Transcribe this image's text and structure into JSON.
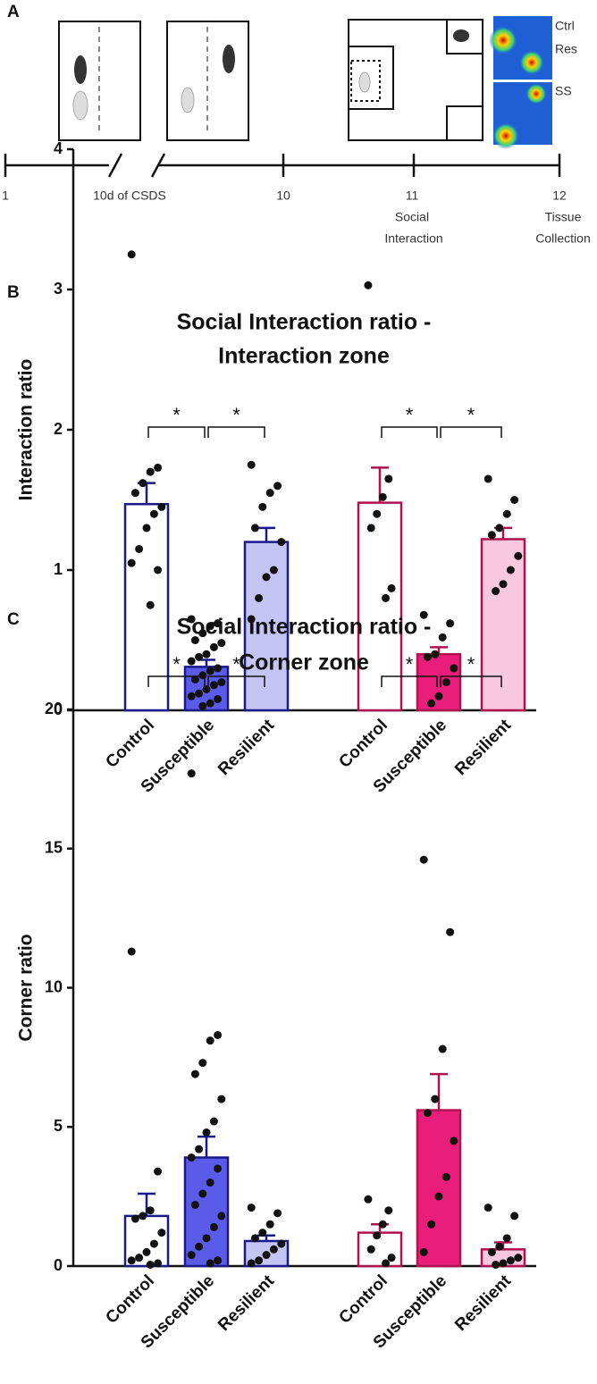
{
  "panel_a": {
    "label": "A",
    "timeline": [
      "1",
      "10d of CSDS",
      "10",
      "11",
      "12"
    ],
    "stage_labels": [
      [
        "Social",
        "Interaction"
      ],
      [
        "Tissue",
        "Collection"
      ]
    ],
    "heatmap_labels": [
      "Ctrl",
      "Res",
      "SS"
    ]
  },
  "panel_labels": [
    "B",
    "C"
  ],
  "chart_data": [
    {
      "type": "bar",
      "title": [
        "Social Interaction ratio -",
        "Interaction zone"
      ],
      "y_label": "Interaction ratio",
      "categories": [
        "Control",
        "Susceptible",
        "Resilient",
        "Control",
        "Susceptible",
        "Resilient"
      ],
      "values": [
        1.47,
        0.31,
        1.2,
        1.48,
        0.4,
        1.22
      ],
      "errors": [
        0.15,
        0.05,
        0.1,
        0.25,
        0.05,
        0.08
      ],
      "fill_colors": [
        "#ffffff",
        "#5b5bea",
        "#c4c4f5",
        "#ffffff",
        "#e91e7a",
        "#f8c8dd"
      ],
      "edge_colors": [
        "#1a1a8c",
        "#1a1a8c",
        "#1a1a8c",
        "#b0124f",
        "#b0124f",
        "#b0124f"
      ],
      "points": [
        [
          3.25,
          1.73,
          1.7,
          1.62,
          1.55,
          1.45,
          1.4,
          1.3,
          1.15,
          1.05,
          1.0,
          0.75
        ],
        [
          0.65,
          0.62,
          0.6,
          0.55,
          0.5,
          0.48,
          0.45,
          0.4,
          0.38,
          0.35,
          0.3,
          0.28,
          0.25,
          0.22,
          0.2,
          0.18,
          0.15,
          0.12,
          0.1,
          0.08,
          0.05,
          0.03
        ],
        [
          1.75,
          1.6,
          1.55,
          1.45,
          1.3,
          1.2,
          1.0,
          0.95,
          0.8,
          0.65
        ],
        [
          3.03,
          1.65,
          1.52,
          1.4,
          1.3,
          0.87,
          0.8
        ],
        [
          0.68,
          0.62,
          0.52,
          0.4,
          0.38,
          0.3,
          0.2,
          0.1,
          0.05
        ],
        [
          1.65,
          1.5,
          1.4,
          1.3,
          1.25,
          1.1,
          1.0,
          0.9,
          0.85
        ]
      ],
      "significance": [
        "*",
        "*",
        "*",
        "*"
      ],
      "ylim": [
        0,
        4
      ],
      "yticks": [
        0,
        1,
        2,
        3,
        4
      ]
    },
    {
      "type": "bar",
      "title": [
        "Social Interaction ratio -",
        "Corner zone"
      ],
      "y_label": "Corner ratio",
      "categories": [
        "Control",
        "Susceptible",
        "Resilient",
        "Control",
        "Susceptible",
        "Resilient"
      ],
      "values": [
        1.8,
        3.9,
        0.9,
        1.2,
        5.6,
        0.6
      ],
      "errors": [
        0.8,
        0.75,
        0.2,
        0.3,
        1.3,
        0.25
      ],
      "fill_colors": [
        "#ffffff",
        "#5b5bea",
        "#c4c4f5",
        "#ffffff",
        "#e91e7a",
        "#f8c8dd"
      ],
      "edge_colors": [
        "#1a1a8c",
        "#1a1a8c",
        "#1a1a8c",
        "#b0124f",
        "#b0124f",
        "#b0124f"
      ],
      "points": [
        [
          11.3,
          3.4,
          2.0,
          1.8,
          1.7,
          1.2,
          0.8,
          0.5,
          0.3,
          0.2,
          0.1,
          0.05
        ],
        [
          17.7,
          8.3,
          8.1,
          7.3,
          6.9,
          6.0,
          5.2,
          4.8,
          4.2,
          3.9,
          3.5,
          3.0,
          2.6,
          2.2,
          1.8,
          1.4,
          1.0,
          0.7,
          0.4,
          0.2,
          0.1
        ],
        [
          2.1,
          1.9,
          1.5,
          1.2,
          1.0,
          0.8,
          0.6,
          0.4,
          0.2,
          0.1
        ],
        [
          2.4,
          2.0,
          1.5,
          1.1,
          0.6,
          0.3,
          0.1
        ],
        [
          14.6,
          12.0,
          7.8,
          6.0,
          5.5,
          4.5,
          3.2,
          2.5,
          1.5,
          0.5
        ],
        [
          2.1,
          1.8,
          1.0,
          0.7,
          0.5,
          0.3,
          0.2,
          0.1,
          0.05
        ]
      ],
      "significance": [
        "*",
        "*",
        "*",
        "*"
      ],
      "ylim": [
        0,
        20
      ],
      "yticks": [
        0,
        5,
        10,
        15,
        20
      ]
    }
  ]
}
